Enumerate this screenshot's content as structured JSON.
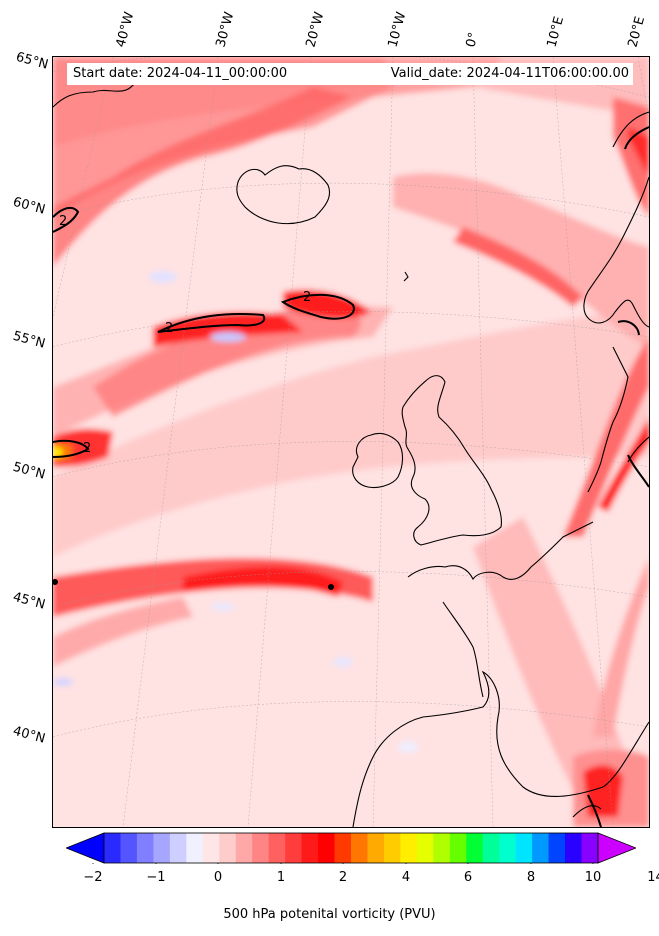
{
  "map": {
    "header": {
      "start_date": "Start date: 2024-04-11_00:00:00",
      "valid_date": "Valid_date: 2024-04-11T06:00:00.00"
    },
    "longitude_labels": [
      "40°W",
      "30°W",
      "20°W",
      "10°W",
      "0°",
      "10°E",
      "20°E"
    ],
    "latitude_labels": [
      "65°N",
      "60°N",
      "55°N",
      "50°N",
      "45°N",
      "40°N"
    ],
    "contour_label": "2",
    "colorbar": {
      "title": "500 hPa potenital vorticity (PVU)",
      "tick_labels": [
        "−2",
        "−1",
        "0",
        "1",
        "2",
        "4",
        "6",
        "8",
        "10",
        "14"
      ],
      "colors": [
        "#0000ff",
        "#2a2aff",
        "#5555ff",
        "#7f7fff",
        "#a6a6ff",
        "#cfcfff",
        "#f0f0ff",
        "#ffe6e6",
        "#ffcccc",
        "#ffa8a8",
        "#ff8585",
        "#ff6161",
        "#ff3d3d",
        "#ff1a1a",
        "#ff0000",
        "#ff3a00",
        "#ff7700",
        "#ffaa00",
        "#ffcc00",
        "#ffee00",
        "#e5ff00",
        "#b0ff00",
        "#66ff00",
        "#00ff33",
        "#00ff99",
        "#00ffcc",
        "#00e5ff",
        "#0099ff",
        "#0044ff",
        "#2a00ff",
        "#8800ff",
        "#cc00ff"
      ]
    }
  }
}
